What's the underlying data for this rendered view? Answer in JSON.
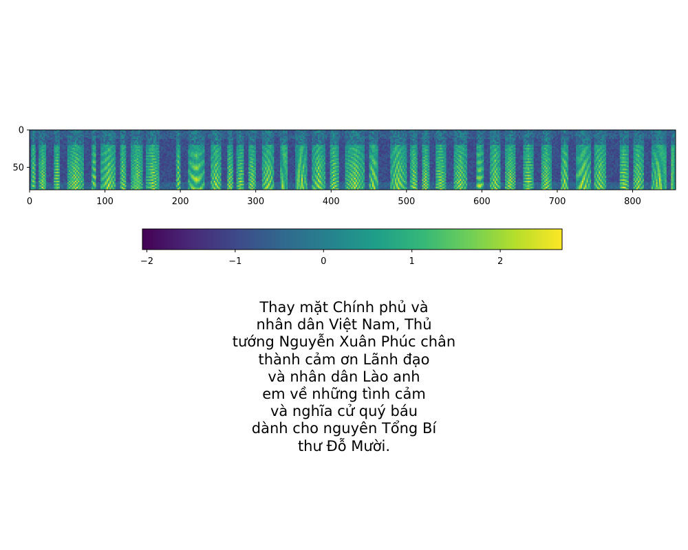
{
  "chart_data": [
    {
      "type": "heatmap",
      "colormap": "viridis",
      "x_ticks": [
        0,
        100,
        200,
        300,
        400,
        500,
        600,
        700,
        800
      ],
      "y_ticks": [
        0,
        50
      ],
      "xlim": [
        0,
        857
      ],
      "ylim": [
        80,
        0
      ],
      "grid": false,
      "x_tick_labels": [
        "0",
        "100",
        "200",
        "300",
        "400",
        "500",
        "600",
        "700",
        "800"
      ],
      "y_tick_labels": [
        "0",
        "50"
      ],
      "loud_segments": [
        [
          3,
          8
        ],
        [
          13,
          22
        ],
        [
          33,
          40
        ],
        [
          50,
          72
        ],
        [
          83,
          89
        ],
        [
          95,
          115
        ],
        [
          120,
          128
        ],
        [
          135,
          150
        ],
        [
          155,
          172
        ],
        [
          195,
          200
        ],
        [
          210,
          232
        ],
        [
          240,
          255
        ],
        [
          262,
          270
        ],
        [
          275,
          285
        ],
        [
          290,
          300
        ],
        [
          308,
          325
        ],
        [
          333,
          342
        ],
        [
          352,
          368
        ],
        [
          375,
          392
        ],
        [
          398,
          410
        ],
        [
          418,
          445
        ],
        [
          450,
          462
        ],
        [
          478,
          500
        ],
        [
          505,
          515
        ],
        [
          520,
          530
        ],
        [
          538,
          552
        ],
        [
          562,
          580
        ],
        [
          592,
          602
        ],
        [
          610,
          625
        ],
        [
          630,
          645
        ],
        [
          655,
          668
        ],
        [
          678,
          692
        ],
        [
          705,
          715
        ],
        [
          725,
          745
        ],
        [
          748,
          765
        ],
        [
          782,
          795
        ],
        [
          800,
          815
        ],
        [
          825,
          845
        ],
        [
          850,
          857
        ]
      ]
    },
    {
      "type": "colorbar",
      "colormap": "viridis",
      "range": [
        -2.05,
        2.7
      ],
      "ticks": [
        -2,
        -1,
        0,
        1,
        2
      ],
      "tick_labels": [
        "−2",
        "−1",
        "0",
        "1",
        "2"
      ]
    }
  ],
  "caption_lines": [
    "Thay mặt Chính phủ và",
    "nhân dân Việt Nam, Thủ",
    "tướng Nguyễn Xuân Phúc chân",
    "thành cảm ơn Lãnh đạo",
    "và nhân dân Lào anh",
    "em về những tình cảm",
    "và nghĩa cử quý báu",
    "dành cho nguyên Tổng Bí",
    "thư Đỗ Mười."
  ],
  "colors": {
    "viridis": [
      "#440154",
      "#482878",
      "#3e4989",
      "#31688e",
      "#26828e",
      "#1f9e89",
      "#35b779",
      "#6ece58",
      "#b5de2b",
      "#fde725"
    ],
    "frame": "#000000",
    "text": "#000000"
  }
}
